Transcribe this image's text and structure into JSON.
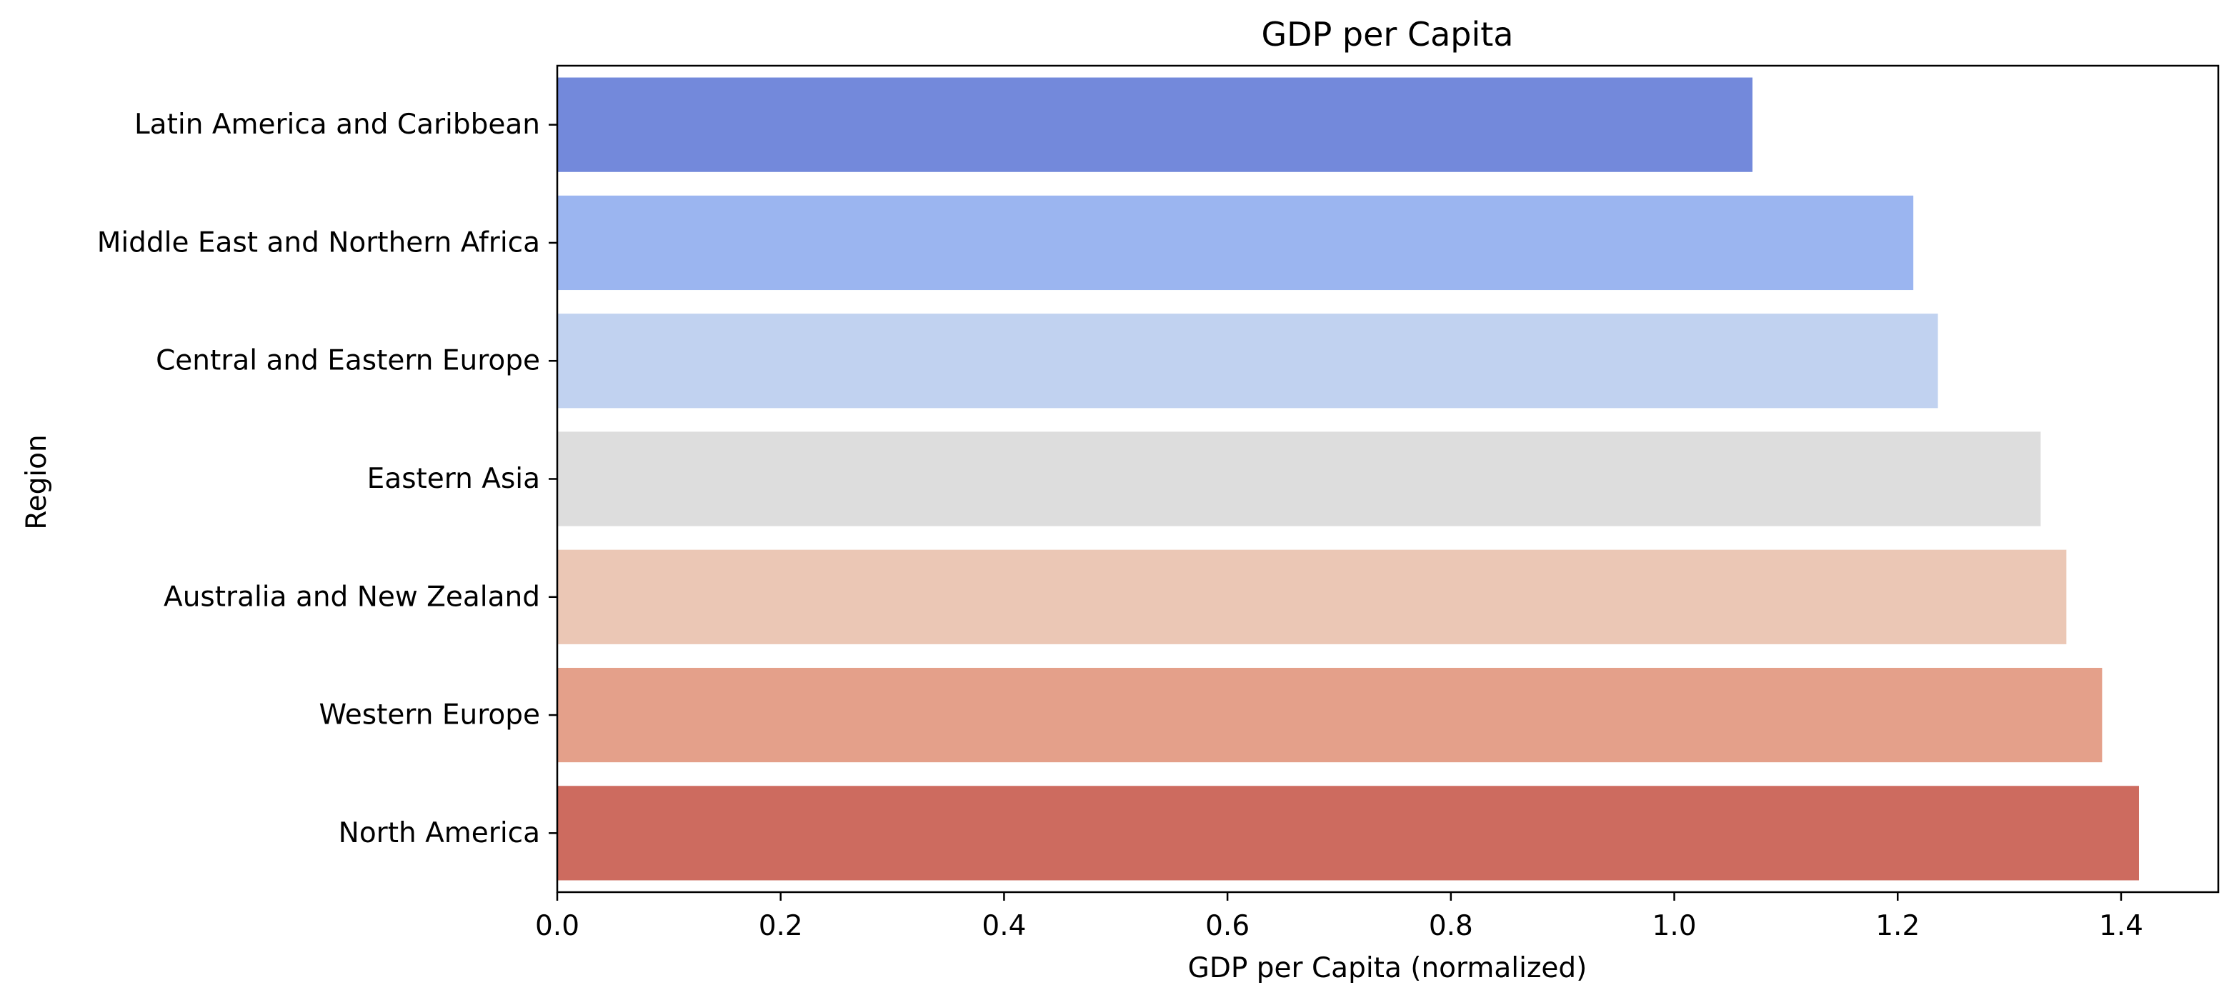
{
  "chart_data": {
    "type": "bar",
    "orientation": "horizontal",
    "title": "GDP per Capita",
    "xlabel": "GDP per Capita (normalized)",
    "ylabel": "Region",
    "categories": [
      "Latin America and Caribbean",
      "Middle East and Northern Africa",
      "Central and Eastern Europe",
      "Eastern Asia",
      "Australia and New Zealand",
      "Western Europe",
      "North America"
    ],
    "values": [
      1.07,
      1.214,
      1.236,
      1.328,
      1.351,
      1.383,
      1.416
    ],
    "colors": [
      "#7389db",
      "#9bb5f0",
      "#c1d2f0",
      "#dddddd",
      "#ebc7b5",
      "#e4a08a",
      "#cd6b5f"
    ],
    "xlim": [
      0,
      1.487
    ],
    "xticks": [
      "0.0",
      "0.2",
      "0.4",
      "0.6",
      "0.8",
      "1.0",
      "1.2",
      "1.4"
    ],
    "grid": false,
    "legend": "none"
  }
}
